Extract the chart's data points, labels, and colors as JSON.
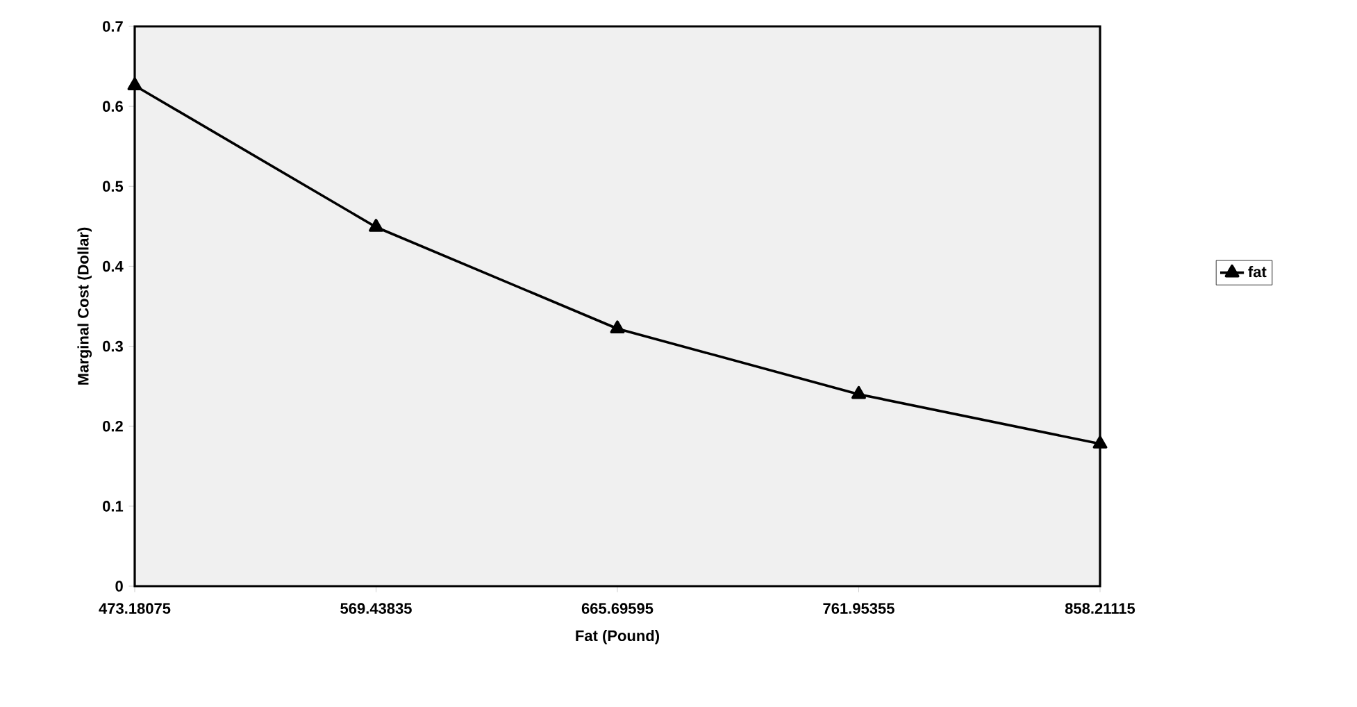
{
  "chart_data": {
    "type": "line",
    "xlabel": "Fat (Pound)",
    "ylabel": "Marginal Cost (Dollar)",
    "categories": [
      "473.18075",
      "569.43835",
      "665.69595",
      "761.95355",
      "858.21115"
    ],
    "series": [
      {
        "name": "fat",
        "color": "#000000",
        "values": [
          0.626,
          0.449,
          0.322,
          0.24,
          0.178
        ]
      }
    ],
    "ylim": [
      0,
      0.7
    ],
    "yticks": [
      0,
      0.1,
      0.2,
      0.3,
      0.4,
      0.5,
      0.6,
      0.7
    ],
    "marker": "triangle",
    "line_style": "solid",
    "legend": "right"
  }
}
